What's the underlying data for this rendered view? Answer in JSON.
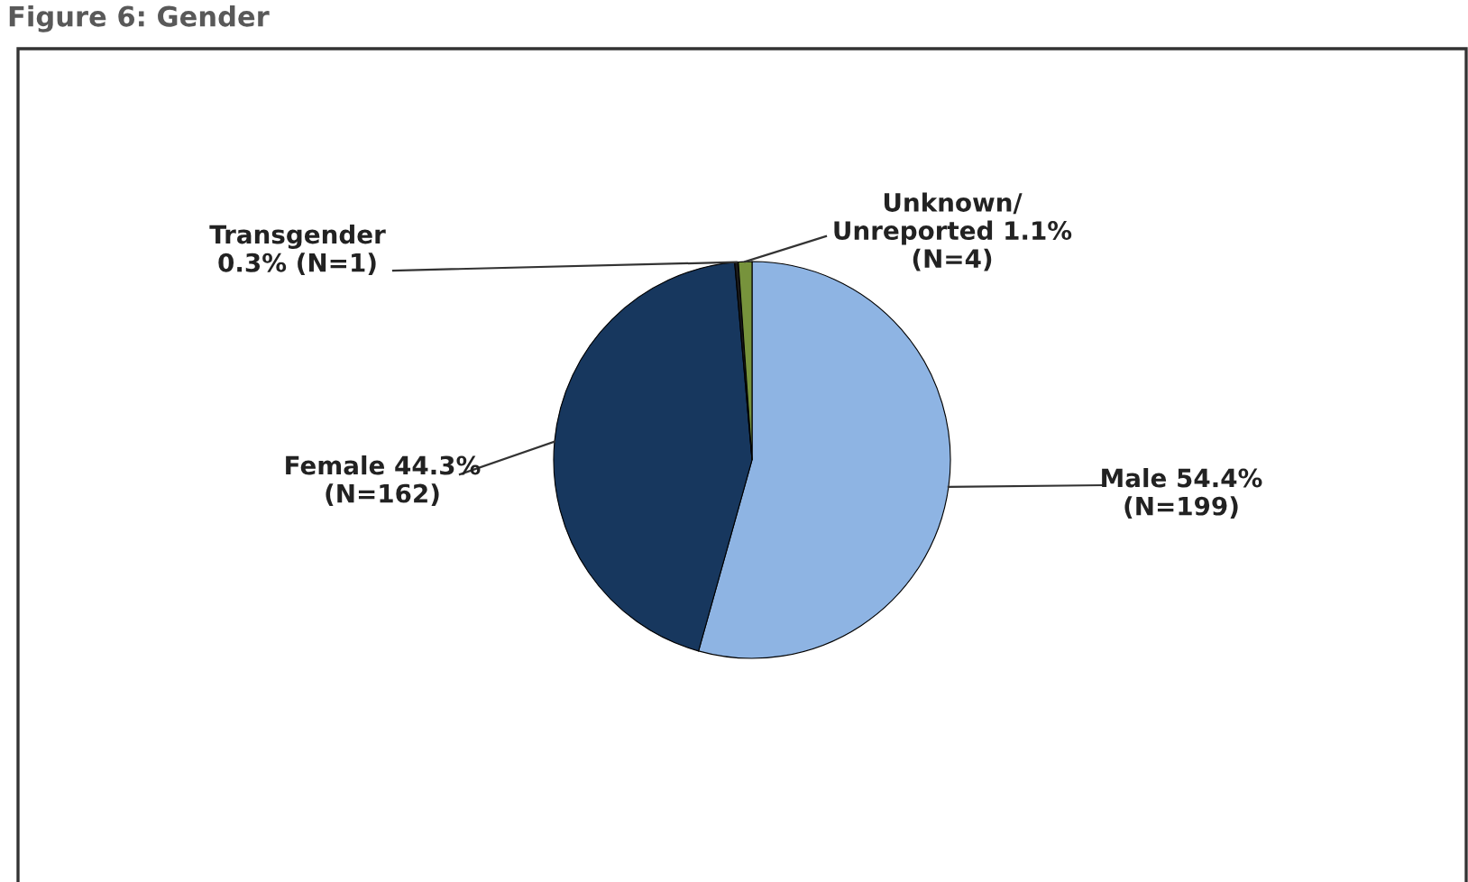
{
  "chart_data": {
    "type": "pie",
    "title": "Figure 6: Gender",
    "categories": [
      "Male 54.4%\n(N=199)",
      "Female 44.3%\n(N=162)",
      "Transgender\n0.3% (N=1)",
      "Unknown/\nUnreported 1.1%\n(N=4)"
    ],
    "values": [
      54.4,
      44.3,
      0.3,
      1.1
    ],
    "colors": [
      "#8eb4e3",
      "#17375e",
      "#1a1a1a",
      "#77933c"
    ]
  }
}
